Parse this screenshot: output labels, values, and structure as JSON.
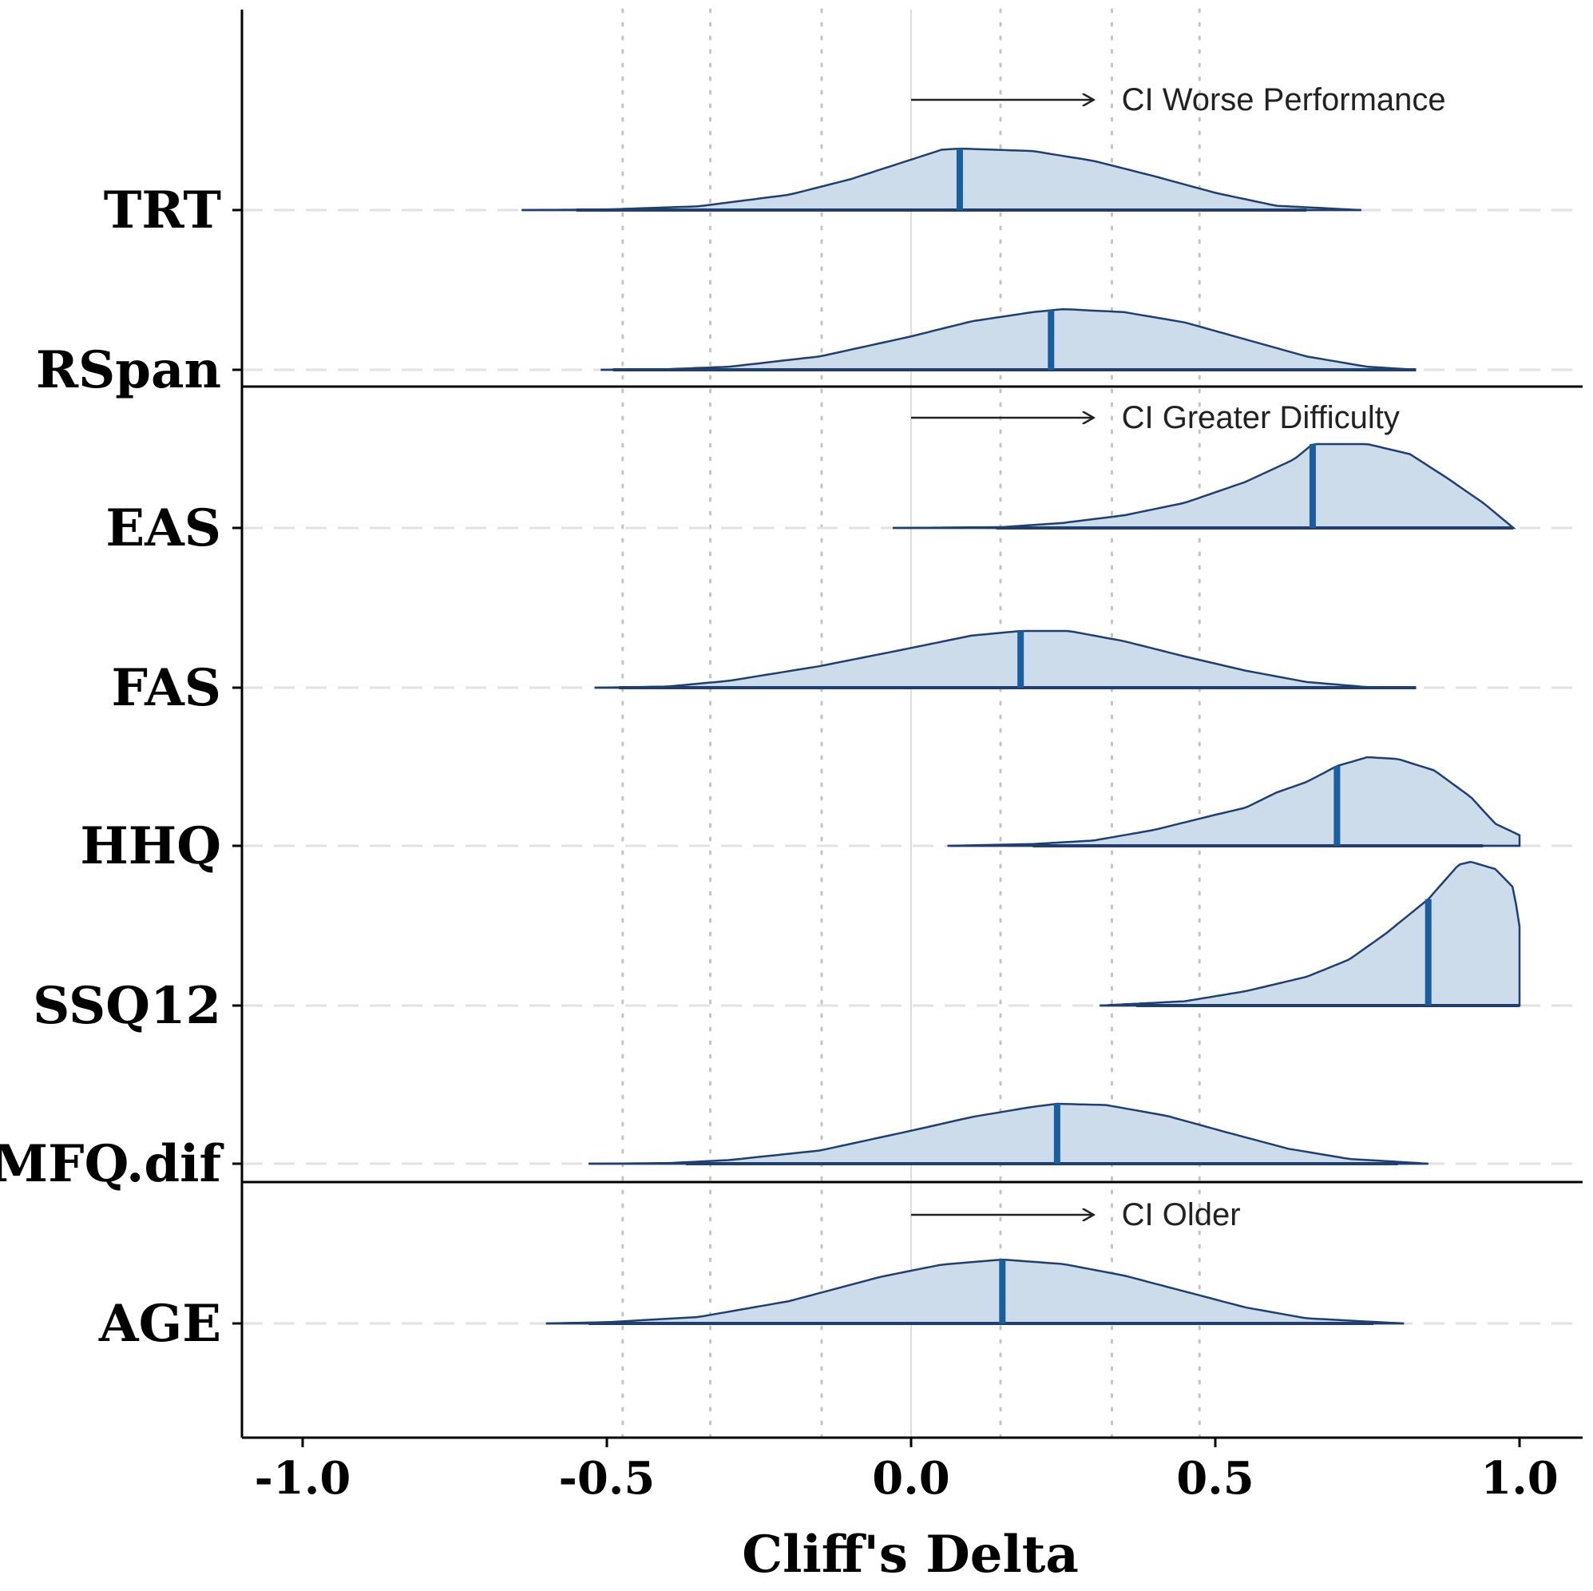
{
  "chart_data": {
    "type": "density-ridgeline",
    "xlabel": "Cliff's Delta",
    "xlim": [
      -1.1,
      1.1
    ],
    "x_ticks": [
      -1.0,
      -0.5,
      0.0,
      0.5,
      1.0
    ],
    "x_tick_labels": [
      "-1.0",
      "-0.5",
      "0.0",
      "0.5",
      "1.0"
    ],
    "dotted_reference_lines": [
      -0.474,
      -0.33,
      -0.147,
      0.147,
      0.33,
      0.474
    ],
    "solid_reference_line": 0.0,
    "colors": {
      "fill": "#ccdcea",
      "outline": "#1f3f73",
      "median": "#1a5e9e",
      "ci_segment": "#1f3f73",
      "axis": "#000000",
      "dotted_grid": "#c4c4c4",
      "zero_line": "#dddddd",
      "row_baseline": "#e2e2e2"
    },
    "categories": [
      "TRT",
      "RSpan",
      "EAS",
      "FAS",
      "HHQ",
      "SSQ12",
      "MFQ.dif",
      "AGE"
    ],
    "series": [
      {
        "name": "TRT",
        "median": 0.08,
        "support": [
          -0.64,
          0.74
        ],
        "ci95": [
          -0.55,
          0.65
        ],
        "ci80": [
          -0.47,
          0.56
        ],
        "density": [
          [
            -0.64,
            0
          ],
          [
            -0.5,
            0.01
          ],
          [
            -0.35,
            0.06
          ],
          [
            -0.2,
            0.25
          ],
          [
            -0.1,
            0.5
          ],
          [
            0.0,
            0.82
          ],
          [
            0.05,
            0.98
          ],
          [
            0.08,
            1.0
          ],
          [
            0.2,
            0.96
          ],
          [
            0.3,
            0.8
          ],
          [
            0.4,
            0.55
          ],
          [
            0.5,
            0.28
          ],
          [
            0.6,
            0.07
          ],
          [
            0.74,
            0
          ]
        ]
      },
      {
        "name": "RSpan",
        "median": 0.23,
        "support": [
          -0.51,
          0.83
        ],
        "ci95": [
          -0.49,
          0.83
        ],
        "ci80": [
          -0.33,
          0.8
        ],
        "density": [
          [
            -0.51,
            0
          ],
          [
            -0.4,
            0.01
          ],
          [
            -0.3,
            0.05
          ],
          [
            -0.15,
            0.22
          ],
          [
            0.0,
            0.55
          ],
          [
            0.1,
            0.8
          ],
          [
            0.2,
            0.95
          ],
          [
            0.25,
            1.0
          ],
          [
            0.35,
            0.95
          ],
          [
            0.45,
            0.78
          ],
          [
            0.55,
            0.5
          ],
          [
            0.65,
            0.22
          ],
          [
            0.75,
            0.05
          ],
          [
            0.83,
            0
          ]
        ]
      },
      {
        "name": "EAS",
        "median": 0.66,
        "support": [
          -0.03,
          0.99
        ],
        "ci95": [
          0.14,
          0.99
        ],
        "ci80": [
          0.22,
          0.92
        ],
        "density": [
          [
            -0.03,
            0
          ],
          [
            0.15,
            0.01
          ],
          [
            0.25,
            0.06
          ],
          [
            0.35,
            0.15
          ],
          [
            0.45,
            0.3
          ],
          [
            0.55,
            0.55
          ],
          [
            0.63,
            0.82
          ],
          [
            0.66,
            1.0
          ],
          [
            0.75,
            1.0
          ],
          [
            0.82,
            0.88
          ],
          [
            0.88,
            0.6
          ],
          [
            0.94,
            0.3
          ],
          [
            0.99,
            0
          ]
        ]
      },
      {
        "name": "FAS",
        "median": 0.18,
        "support": [
          -0.52,
          0.83
        ],
        "ci95": [
          -0.48,
          0.83
        ],
        "ci80": [
          -0.37,
          0.72
        ],
        "density": [
          [
            -0.52,
            0
          ],
          [
            -0.4,
            0.02
          ],
          [
            -0.3,
            0.12
          ],
          [
            -0.15,
            0.38
          ],
          [
            0.0,
            0.7
          ],
          [
            0.1,
            0.92
          ],
          [
            0.18,
            1.0
          ],
          [
            0.26,
            1.0
          ],
          [
            0.35,
            0.82
          ],
          [
            0.45,
            0.55
          ],
          [
            0.55,
            0.3
          ],
          [
            0.65,
            0.1
          ],
          [
            0.75,
            0.01
          ],
          [
            0.83,
            0
          ]
        ]
      },
      {
        "name": "HHQ",
        "median": 0.7,
        "support": [
          0.06,
          1.0
        ],
        "ci95": [
          0.2,
          0.94
        ],
        "ci80": [
          0.3,
          0.9
        ],
        "density": [
          [
            0.06,
            0
          ],
          [
            0.2,
            0.02
          ],
          [
            0.3,
            0.06
          ],
          [
            0.4,
            0.18
          ],
          [
            0.5,
            0.35
          ],
          [
            0.55,
            0.43
          ],
          [
            0.6,
            0.6
          ],
          [
            0.65,
            0.72
          ],
          [
            0.7,
            0.9
          ],
          [
            0.75,
            1.0
          ],
          [
            0.8,
            0.98
          ],
          [
            0.86,
            0.85
          ],
          [
            0.92,
            0.55
          ],
          [
            0.96,
            0.25
          ],
          [
            1.0,
            0.12
          ]
        ]
      },
      {
        "name": "SSQ12",
        "median": 0.85,
        "support": [
          0.31,
          1.0
        ],
        "ci95": [
          0.37,
          1.0
        ],
        "ci80": [
          0.47,
          1.0
        ],
        "density": [
          [
            0.31,
            0
          ],
          [
            0.45,
            0.03
          ],
          [
            0.55,
            0.1
          ],
          [
            0.65,
            0.2
          ],
          [
            0.72,
            0.32
          ],
          [
            0.78,
            0.5
          ],
          [
            0.85,
            0.74
          ],
          [
            0.9,
            0.98
          ],
          [
            0.92,
            1.0
          ],
          [
            0.96,
            0.95
          ],
          [
            0.99,
            0.82
          ],
          [
            1.0,
            0.55
          ]
        ]
      },
      {
        "name": "MFQ.dif",
        "median": 0.24,
        "support": [
          -0.53,
          0.85
        ],
        "ci95": [
          -0.37,
          0.8
        ],
        "ci80": [
          -0.3,
          0.76
        ],
        "density": [
          [
            -0.53,
            0
          ],
          [
            -0.4,
            0.01
          ],
          [
            -0.3,
            0.06
          ],
          [
            -0.15,
            0.22
          ],
          [
            0.0,
            0.55
          ],
          [
            0.1,
            0.78
          ],
          [
            0.2,
            0.95
          ],
          [
            0.24,
            1.0
          ],
          [
            0.32,
            0.98
          ],
          [
            0.42,
            0.8
          ],
          [
            0.52,
            0.52
          ],
          [
            0.62,
            0.25
          ],
          [
            0.72,
            0.08
          ],
          [
            0.85,
            0
          ]
        ]
      },
      {
        "name": "AGE",
        "median": 0.15,
        "support": [
          -0.6,
          0.81
        ],
        "ci95": [
          -0.53,
          0.76
        ],
        "ci80": [
          -0.4,
          0.67
        ],
        "density": [
          [
            -0.6,
            0
          ],
          [
            -0.5,
            0.02
          ],
          [
            -0.35,
            0.1
          ],
          [
            -0.2,
            0.35
          ],
          [
            -0.05,
            0.73
          ],
          [
            0.05,
            0.92
          ],
          [
            0.15,
            1.0
          ],
          [
            0.25,
            0.93
          ],
          [
            0.35,
            0.75
          ],
          [
            0.45,
            0.5
          ],
          [
            0.55,
            0.25
          ],
          [
            0.65,
            0.08
          ],
          [
            0.81,
            0
          ]
        ]
      }
    ],
    "annotations": [
      {
        "text": "CI Worse Performance",
        "arrow_from": 0.0,
        "arrow_to": 0.3
      },
      {
        "text": "CI Greater Difficulty",
        "arrow_from": 0.0,
        "arrow_to": 0.3
      },
      {
        "text": "CI Older",
        "arrow_from": 0.0,
        "arrow_to": 0.3
      }
    ],
    "groups": [
      {
        "members": [
          "TRT",
          "RSpan"
        ],
        "annotation": 0
      },
      {
        "members": [
          "EAS",
          "FAS",
          "HHQ",
          "SSQ12",
          "MFQ.dif"
        ],
        "annotation": 1
      },
      {
        "members": [
          "AGE"
        ],
        "annotation": 2
      }
    ]
  }
}
